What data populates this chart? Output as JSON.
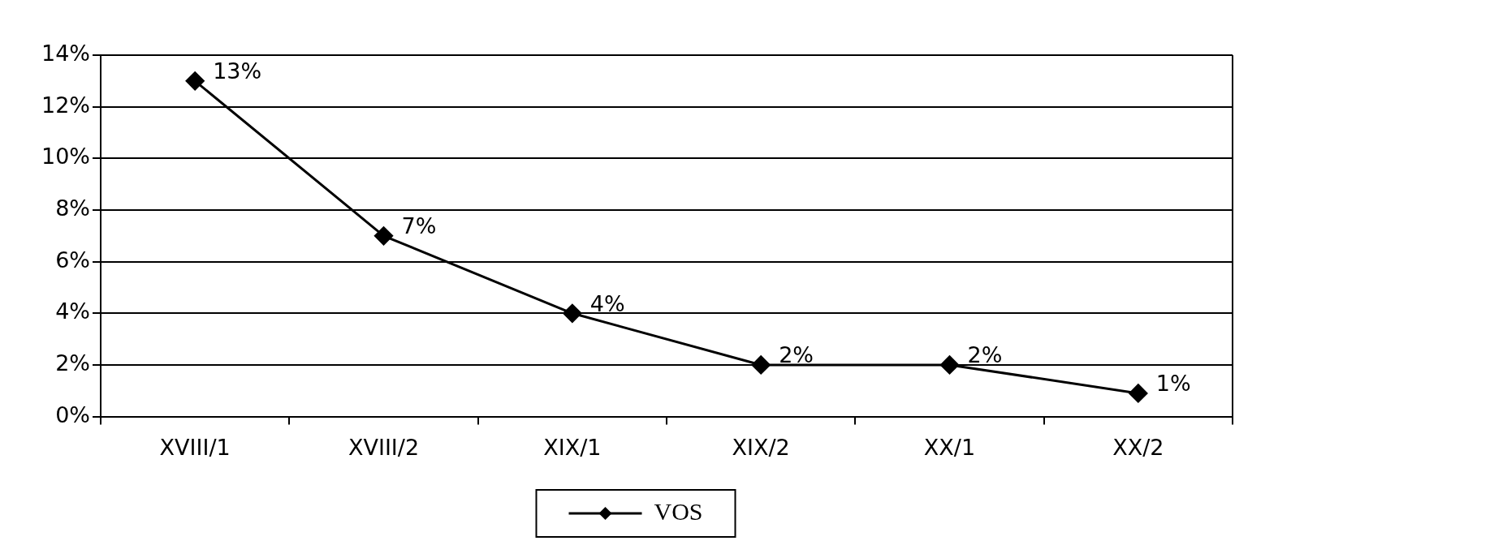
{
  "chart_data": {
    "type": "line",
    "categories": [
      "XVIII/1",
      "XVIII/2",
      "XIX/1",
      "XIX/2",
      "XX/1",
      "XX/2"
    ],
    "series": [
      {
        "name": "VOS",
        "color": "#000000",
        "values": [
          13,
          7,
          4,
          2,
          2,
          0.9
        ],
        "value_labels": [
          "13%",
          "7%",
          "4%",
          "2%",
          "2%",
          "1%"
        ]
      }
    ],
    "ylim": [
      0,
      14
    ],
    "yticks": [
      {
        "value": 0,
        "label": "0%"
      },
      {
        "value": 2,
        "label": "2%"
      },
      {
        "value": 4,
        "label": "4%"
      },
      {
        "value": 6,
        "label": "6%"
      },
      {
        "value": 8,
        "label": "8%"
      },
      {
        "value": 10,
        "label": "10%"
      },
      {
        "value": 12,
        "label": "12%"
      },
      {
        "value": 14,
        "label": "14%"
      }
    ],
    "grid": "y",
    "legend": "bottom",
    "marker": "diamond",
    "line_style": "solid"
  }
}
